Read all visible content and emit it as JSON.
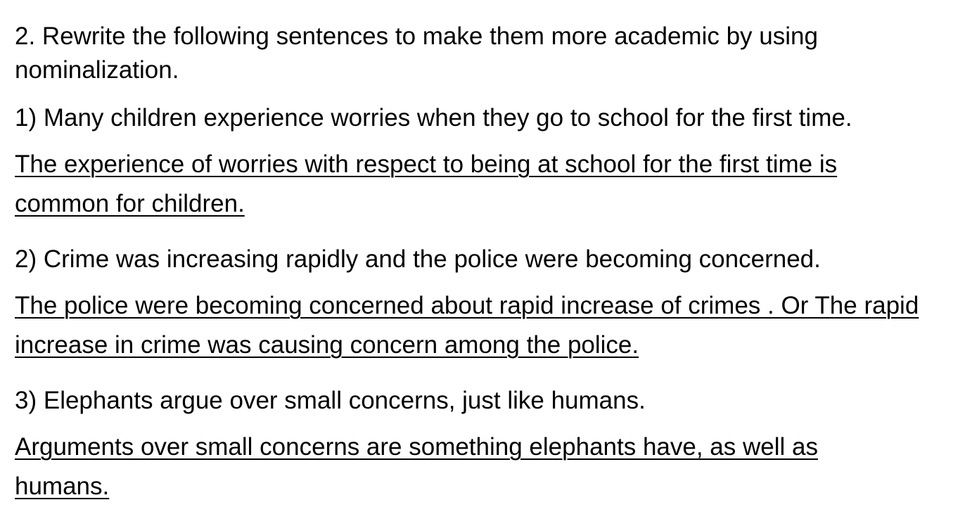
{
  "instruction": "2. Rewrite the following sentences to make them more academic by using nominalization.",
  "items": [
    {
      "question": "1) Many children experience worries when they go to school for the first time.",
      "answer": "The experience of worries with respect to being at school for the first time is common for children."
    },
    {
      "question": "2) Crime was increasing rapidly and the police were becoming concerned.",
      "answer": "The police were becoming concerned about rapid increase of crimes . Or The rapid increase in crime was causing concern among the police."
    },
    {
      "question": "3) Elephants argue over small concerns, just like humans.",
      "answer": "Arguments over small concerns are something elephants have, as well as humans."
    }
  ]
}
